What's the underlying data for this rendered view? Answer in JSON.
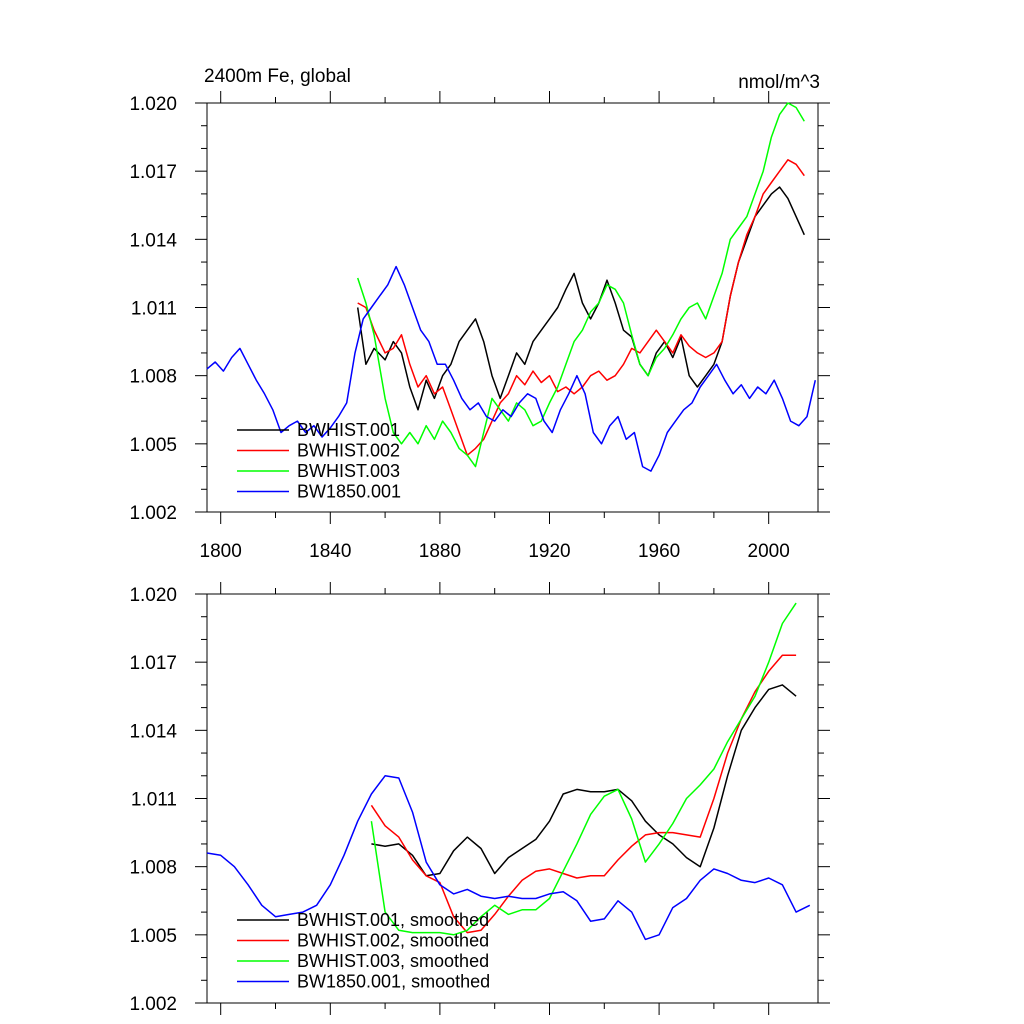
{
  "chart_data": [
    {
      "type": "line",
      "title": "2400m Fe, global",
      "units": "nmol/m^3",
      "xlabel": "",
      "ylabel": "",
      "xlim": [
        1795,
        2018
      ],
      "ylim": [
        1.002,
        1.02
      ],
      "xticks": [
        1800,
        1840,
        1880,
        1920,
        1960,
        2000
      ],
      "yticks": [
        1.002,
        1.005,
        1.008,
        1.011,
        1.014,
        1.017,
        1.02
      ],
      "ytick_labels": [
        "1.002",
        "1.005",
        "1.008",
        "1.011",
        "1.014",
        "1.017",
        "1.020"
      ],
      "show_xtick_labels": true,
      "legend_position": "bottom-left",
      "series": [
        {
          "name": "BWHIST.001",
          "color": "#000000",
          "x": [
            1850,
            1853,
            1856,
            1860,
            1863,
            1866,
            1869,
            1872,
            1875,
            1878,
            1881,
            1884,
            1887,
            1890,
            1893,
            1896,
            1899,
            1902,
            1905,
            1908,
            1911,
            1914,
            1917,
            1920,
            1923,
            1926,
            1929,
            1932,
            1935,
            1938,
            1941,
            1944,
            1947,
            1950,
            1953,
            1956,
            1959,
            1962,
            1965,
            1968,
            1971,
            1974,
            1977,
            1980,
            1983,
            1986,
            1989,
            1992,
            1995,
            1998,
            2001,
            2004,
            2007,
            2010,
            2013
          ],
          "values": [
            1.011,
            1.0085,
            1.0092,
            1.0087,
            1.0095,
            1.009,
            1.0075,
            1.0065,
            1.0078,
            1.007,
            1.008,
            1.0085,
            1.0095,
            1.01,
            1.0105,
            1.0095,
            1.008,
            1.007,
            1.008,
            1.009,
            1.0085,
            1.0095,
            1.01,
            1.0105,
            1.011,
            1.0118,
            1.0125,
            1.0112,
            1.0105,
            1.0112,
            1.0122,
            1.0112,
            1.01,
            1.0097,
            1.0085,
            1.008,
            1.009,
            1.0095,
            1.0088,
            1.0097,
            1.008,
            1.0075,
            1.008,
            1.0085,
            1.0095,
            1.0115,
            1.013,
            1.014,
            1.015,
            1.0155,
            1.016,
            1.0163,
            1.0158,
            1.015,
            1.0142
          ]
        },
        {
          "name": "BWHIST.002",
          "color": "#ff0000",
          "x": [
            1850,
            1853,
            1856,
            1860,
            1863,
            1866,
            1869,
            1872,
            1875,
            1878,
            1881,
            1884,
            1887,
            1890,
            1893,
            1896,
            1899,
            1902,
            1905,
            1908,
            1911,
            1914,
            1917,
            1920,
            1923,
            1926,
            1929,
            1932,
            1935,
            1938,
            1941,
            1944,
            1947,
            1950,
            1953,
            1956,
            1959,
            1962,
            1965,
            1968,
            1971,
            1974,
            1977,
            1980,
            1983,
            1986,
            1989,
            1992,
            1995,
            1998,
            2001,
            2004,
            2007,
            2010,
            2013
          ],
          "values": [
            1.0112,
            1.011,
            1.01,
            1.009,
            1.0092,
            1.0098,
            1.0085,
            1.0075,
            1.008,
            1.0072,
            1.0075,
            1.0065,
            1.0055,
            1.0045,
            1.0048,
            1.0052,
            1.006,
            1.0068,
            1.0072,
            1.008,
            1.0076,
            1.0082,
            1.0077,
            1.008,
            1.0073,
            1.0075,
            1.0072,
            1.0075,
            1.008,
            1.0082,
            1.0078,
            1.008,
            1.0085,
            1.0092,
            1.009,
            1.0095,
            1.01,
            1.0095,
            1.009,
            1.0098,
            1.0093,
            1.009,
            1.0088,
            1.009,
            1.0095,
            1.0115,
            1.013,
            1.0142,
            1.015,
            1.016,
            1.0165,
            1.017,
            1.0175,
            1.0173,
            1.0168
          ]
        },
        {
          "name": "BWHIST.003",
          "color": "#00ff00",
          "x": [
            1850,
            1853,
            1856,
            1860,
            1863,
            1866,
            1869,
            1872,
            1875,
            1878,
            1881,
            1884,
            1887,
            1890,
            1893,
            1896,
            1899,
            1902,
            1905,
            1908,
            1911,
            1914,
            1917,
            1920,
            1923,
            1926,
            1929,
            1932,
            1935,
            1938,
            1941,
            1944,
            1947,
            1950,
            1953,
            1956,
            1959,
            1962,
            1965,
            1968,
            1971,
            1974,
            1977,
            1980,
            1983,
            1986,
            1989,
            1992,
            1995,
            1998,
            2001,
            2004,
            2007,
            2010,
            2013
          ],
          "values": [
            1.0123,
            1.0112,
            1.0098,
            1.007,
            1.0055,
            1.005,
            1.0055,
            1.005,
            1.0058,
            1.0052,
            1.006,
            1.0055,
            1.0048,
            1.0045,
            1.004,
            1.0055,
            1.007,
            1.0065,
            1.006,
            1.0068,
            1.0065,
            1.0058,
            1.006,
            1.0068,
            1.0075,
            1.0085,
            1.0095,
            1.01,
            1.0108,
            1.0112,
            1.012,
            1.0118,
            1.0112,
            1.0098,
            1.0085,
            1.008,
            1.0088,
            1.0092,
            1.0098,
            1.0105,
            1.011,
            1.0112,
            1.0105,
            1.0115,
            1.0125,
            1.014,
            1.0145,
            1.015,
            1.016,
            1.017,
            1.0185,
            1.0195,
            1.02,
            1.0198,
            1.0192
          ]
        },
        {
          "name": "BW1850.001",
          "color": "#0000ff",
          "x": [
            1795,
            1798,
            1801,
            1804,
            1807,
            1810,
            1813,
            1816,
            1819,
            1822,
            1825,
            1828,
            1831,
            1834,
            1837,
            1840,
            1843,
            1846,
            1849,
            1852,
            1855,
            1858,
            1861,
            1864,
            1867,
            1870,
            1873,
            1876,
            1879,
            1882,
            1885,
            1888,
            1891,
            1894,
            1897,
            1900,
            1903,
            1906,
            1909,
            1912,
            1915,
            1918,
            1921,
            1924,
            1927,
            1930,
            1933,
            1936,
            1939,
            1942,
            1945,
            1948,
            1951,
            1954,
            1957,
            1960,
            1963,
            1966,
            1969,
            1972,
            1975,
            1978,
            1981,
            1984,
            1987,
            1990,
            1993,
            1996,
            1999,
            2002,
            2005,
            2008,
            2011,
            2014,
            2017
          ],
          "values": [
            1.0083,
            1.0086,
            1.0082,
            1.0088,
            1.0092,
            1.0085,
            1.0078,
            1.0072,
            1.0065,
            1.0055,
            1.0058,
            1.006,
            1.0055,
            1.0058,
            1.0053,
            1.0057,
            1.0062,
            1.0068,
            1.009,
            1.0105,
            1.011,
            1.0115,
            1.012,
            1.0128,
            1.012,
            1.011,
            1.01,
            1.0095,
            1.0085,
            1.0085,
            1.0078,
            1.007,
            1.0065,
            1.0068,
            1.0062,
            1.006,
            1.0065,
            1.0062,
            1.0068,
            1.0072,
            1.007,
            1.006,
            1.0055,
            1.0065,
            1.0072,
            1.008,
            1.0072,
            1.0055,
            1.005,
            1.0058,
            1.0062,
            1.0052,
            1.0055,
            1.004,
            1.0038,
            1.0045,
            1.0055,
            1.006,
            1.0065,
            1.0068,
            1.0075,
            1.008,
            1.0085,
            1.0078,
            1.0072,
            1.0076,
            1.007,
            1.0075,
            1.0072,
            1.0078,
            1.007,
            1.006,
            1.0058,
            1.0062,
            1.0078
          ]
        }
      ]
    },
    {
      "type": "line",
      "title": "",
      "units": "",
      "xlabel": "",
      "ylabel": "",
      "xlim": [
        1795,
        2018
      ],
      "ylim": [
        1.002,
        1.02
      ],
      "xticks": [
        1800,
        1840,
        1880,
        1920,
        1960,
        2000
      ],
      "yticks": [
        1.002,
        1.005,
        1.008,
        1.011,
        1.014,
        1.017,
        1.02
      ],
      "ytick_labels": [
        "1.002",
        "1.005",
        "1.008",
        "1.011",
        "1.014",
        "1.017",
        "1.020"
      ],
      "show_xtick_labels": false,
      "legend_position": "bottom-left",
      "series": [
        {
          "name": "BWHIST.001, smoothed",
          "color": "#000000",
          "x": [
            1855,
            1860,
            1865,
            1870,
            1875,
            1880,
            1885,
            1890,
            1895,
            1900,
            1905,
            1910,
            1915,
            1920,
            1925,
            1930,
            1935,
            1940,
            1945,
            1950,
            1955,
            1960,
            1965,
            1970,
            1975,
            1980,
            1985,
            1990,
            1995,
            2000,
            2005,
            2010
          ],
          "values": [
            1.009,
            1.0089,
            1.009,
            1.0085,
            1.0076,
            1.0077,
            1.0087,
            1.0093,
            1.0088,
            1.0077,
            1.0084,
            1.0088,
            1.0092,
            1.01,
            1.0112,
            1.0114,
            1.0113,
            1.0113,
            1.0114,
            1.0109,
            1.01,
            1.0094,
            1.009,
            1.0084,
            1.008,
            1.0097,
            1.012,
            1.014,
            1.015,
            1.0158,
            1.016,
            1.0155
          ]
        },
        {
          "name": "BWHIST.002, smoothed",
          "color": "#ff0000",
          "x": [
            1855,
            1860,
            1865,
            1870,
            1875,
            1880,
            1885,
            1890,
            1895,
            1900,
            1905,
            1910,
            1915,
            1920,
            1925,
            1930,
            1935,
            1940,
            1945,
            1950,
            1955,
            1960,
            1965,
            1970,
            1975,
            1980,
            1985,
            1990,
            1995,
            2000,
            2005,
            2010
          ],
          "values": [
            1.0107,
            1.0098,
            1.0093,
            1.0083,
            1.0076,
            1.0073,
            1.0058,
            1.0051,
            1.0052,
            1.0059,
            1.0067,
            1.0074,
            1.0078,
            1.0079,
            1.0077,
            1.0075,
            1.0076,
            1.0076,
            1.0083,
            1.0089,
            1.0094,
            1.0095,
            1.0095,
            1.0094,
            1.0093,
            1.011,
            1.013,
            1.0145,
            1.0157,
            1.0166,
            1.0173,
            1.0173
          ]
        },
        {
          "name": "BWHIST.003, smoothed",
          "color": "#00ff00",
          "x": [
            1855,
            1860,
            1865,
            1870,
            1875,
            1880,
            1885,
            1890,
            1895,
            1900,
            1905,
            1910,
            1915,
            1920,
            1925,
            1930,
            1935,
            1940,
            1945,
            1950,
            1955,
            1960,
            1965,
            1970,
            1975,
            1980,
            1985,
            1990,
            1995,
            2000,
            2005,
            2010
          ],
          "values": [
            1.01,
            1.006,
            1.0052,
            1.0051,
            1.0051,
            1.0051,
            1.005,
            1.0052,
            1.0058,
            1.0063,
            1.0059,
            1.0061,
            1.0061,
            1.0066,
            1.0078,
            1.009,
            1.0103,
            1.0111,
            1.0114,
            1.0101,
            1.0082,
            1.009,
            1.0099,
            1.011,
            1.0116,
            1.0123,
            1.0135,
            1.0145,
            1.0155,
            1.017,
            1.0187,
            1.0196
          ]
        },
        {
          "name": "BW1850.001, smoothed",
          "color": "#0000ff",
          "x": [
            1795,
            1800,
            1805,
            1810,
            1815,
            1820,
            1825,
            1830,
            1835,
            1840,
            1845,
            1850,
            1855,
            1860,
            1865,
            1870,
            1875,
            1880,
            1885,
            1890,
            1895,
            1900,
            1905,
            1910,
            1915,
            1920,
            1925,
            1930,
            1935,
            1940,
            1945,
            1950,
            1955,
            1960,
            1965,
            1970,
            1975,
            1980,
            1985,
            1990,
            1995,
            2000,
            2005,
            2010,
            2015
          ],
          "values": [
            1.0086,
            1.0085,
            1.008,
            1.0072,
            1.0063,
            1.0058,
            1.0059,
            1.006,
            1.0063,
            1.0072,
            1.0085,
            1.01,
            1.0112,
            1.012,
            1.0119,
            1.0104,
            1.0082,
            1.0072,
            1.0068,
            1.007,
            1.0067,
            1.0066,
            1.0067,
            1.0066,
            1.0066,
            1.0068,
            1.0069,
            1.0065,
            1.0056,
            1.0057,
            1.0065,
            1.006,
            1.0048,
            1.005,
            1.0062,
            1.0066,
            1.0074,
            1.0079,
            1.0077,
            1.0074,
            1.0073,
            1.0075,
            1.0072,
            1.006,
            1.0063
          ]
        }
      ]
    }
  ]
}
